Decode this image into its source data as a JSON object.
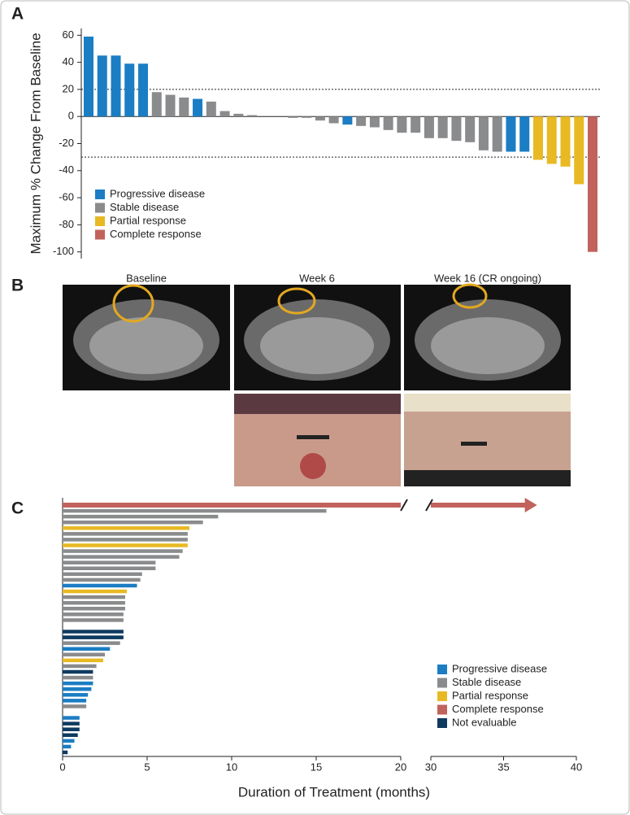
{
  "panel_labels": [
    "A",
    "B",
    "C"
  ],
  "panel_b": {
    "labels": [
      "Baseline",
      "Week 6",
      "Week 16 (CR ongoing)"
    ]
  },
  "chart_data": [
    {
      "type": "waterfall",
      "ylabel": "Maximum % Change From Baseline",
      "ylim": [
        -105,
        65
      ],
      "yticks": [
        60,
        40,
        20,
        0,
        -20,
        -40,
        -60,
        -80,
        -100
      ],
      "hlines": [
        20,
        -30
      ],
      "legend_loc": "lower left",
      "series": [
        {
          "name": "Progressive disease",
          "color": "#1b7dc4",
          "values": [
            59,
            45,
            45,
            39,
            39,
            null,
            null,
            null,
            13,
            null,
            null,
            null,
            null,
            null,
            null,
            null,
            null,
            null,
            null,
            -6,
            null,
            null,
            null,
            null,
            null,
            null,
            null,
            null,
            null,
            null,
            null,
            -26,
            -26,
            null,
            null,
            null,
            null,
            null
          ]
        },
        {
          "name": "Stable disease",
          "color": "#8a8b8d",
          "values": [
            null,
            null,
            null,
            null,
            null,
            18,
            16,
            14,
            null,
            11,
            4,
            2,
            1,
            0,
            0,
            -1,
            -1,
            -3,
            -5,
            null,
            -7,
            -8,
            -10,
            -12,
            -12,
            -16,
            -16,
            -18,
            -19,
            -25,
            -26,
            null,
            null,
            null,
            null,
            null,
            null,
            null
          ]
        },
        {
          "name": "Partial response",
          "color": "#e8b923",
          "values": [
            null,
            null,
            null,
            null,
            null,
            null,
            null,
            null,
            null,
            null,
            null,
            null,
            null,
            null,
            null,
            null,
            null,
            null,
            null,
            null,
            null,
            null,
            null,
            null,
            null,
            null,
            null,
            null,
            null,
            null,
            null,
            null,
            null,
            -32,
            -35,
            -37,
            -50,
            null
          ]
        },
        {
          "name": "Complete response",
          "color": "#c1625c",
          "values": [
            null,
            null,
            null,
            null,
            null,
            null,
            null,
            null,
            null,
            null,
            null,
            null,
            null,
            null,
            null,
            null,
            null,
            null,
            null,
            null,
            null,
            null,
            null,
            null,
            null,
            null,
            null,
            null,
            null,
            null,
            null,
            null,
            null,
            null,
            null,
            null,
            null,
            -100
          ]
        }
      ]
    },
    {
      "type": "hbar",
      "xlabel": "Duration of Treatment (months)",
      "xlim": [
        0,
        40
      ],
      "xbreak": [
        20,
        30
      ],
      "xticks": [
        0,
        5,
        10,
        15,
        20,
        30,
        35,
        40
      ],
      "legend_loc": "lower right",
      "series": [
        {
          "name": "Progressive disease",
          "color": "#1b7dc4",
          "values": [
            null,
            null,
            null,
            null,
            null,
            null,
            null,
            null,
            null,
            null,
            null,
            null,
            null,
            null,
            4.4,
            null,
            null,
            null,
            null,
            null,
            null,
            null,
            null,
            null,
            null,
            2.8,
            null,
            null,
            null,
            null,
            null,
            1.8,
            1.7,
            1.5,
            1.4,
            null,
            null,
            1.0,
            null,
            null,
            null,
            0.7,
            0.5,
            null
          ]
        },
        {
          "name": "Stable disease",
          "color": "#8a8b8d",
          "values": [
            null,
            15.6,
            9.2,
            8.3,
            null,
            7.4,
            7.4,
            null,
            7.1,
            6.9,
            5.5,
            5.5,
            4.7,
            4.6,
            null,
            null,
            3.7,
            3.7,
            3.7,
            3.6,
            3.6,
            null,
            null,
            3.5,
            3.4,
            null,
            2.5,
            null,
            2.0,
            null,
            1.8,
            null,
            null,
            null,
            null,
            1.4,
            null,
            null,
            null,
            null,
            null,
            null,
            null,
            null
          ]
        },
        {
          "name": "Partial response",
          "color": "#e8b923",
          "values": [
            null,
            null,
            null,
            null,
            7.5,
            null,
            null,
            7.4,
            null,
            null,
            null,
            null,
            null,
            null,
            null,
            3.8,
            null,
            null,
            null,
            null,
            null,
            null,
            null,
            null,
            null,
            null,
            null,
            2.4,
            null,
            null,
            null,
            null,
            null,
            null,
            null,
            null,
            null,
            null,
            null,
            null,
            null,
            null,
            null,
            null
          ]
        },
        {
          "name": "Complete response",
          "color": "#c1625c",
          "arrow": true,
          "values": [
            37.3,
            null,
            null,
            null,
            null,
            null,
            null,
            null,
            null,
            null,
            null,
            null,
            null,
            null,
            null,
            null,
            null,
            null,
            null,
            null,
            null,
            null,
            null,
            null,
            null,
            null,
            null,
            null,
            null,
            null,
            null,
            null,
            null,
            null,
            null,
            null,
            null,
            null,
            null,
            null,
            null,
            null,
            null,
            null
          ]
        },
        {
          "name": "Not evaluable",
          "color": "#0e3a60",
          "values": [
            null,
            null,
            null,
            null,
            null,
            null,
            null,
            null,
            null,
            null,
            null,
            null,
            null,
            null,
            null,
            null,
            null,
            null,
            null,
            null,
            null,
            null,
            3.6,
            3.6,
            null,
            null,
            null,
            null,
            null,
            1.8,
            null,
            null,
            null,
            null,
            null,
            null,
            null,
            null,
            1.0,
            1.0,
            0.9,
            null,
            null,
            0.3
          ]
        }
      ]
    }
  ]
}
